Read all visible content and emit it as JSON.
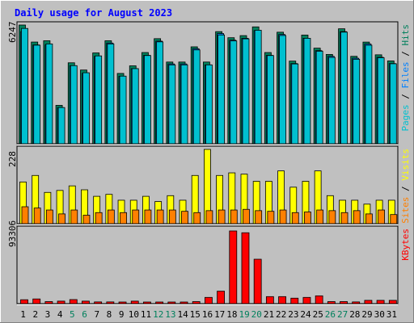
{
  "chart_data": [
    {
      "type": "bar",
      "title": "Daily usage for August 2023",
      "panel": "top",
      "categories": [
        "1",
        "2",
        "3",
        "4",
        "5",
        "6",
        "7",
        "8",
        "9",
        "10",
        "11",
        "12",
        "13",
        "14",
        "15",
        "16",
        "17",
        "18",
        "19",
        "20",
        "21",
        "22",
        "23",
        "24",
        "25",
        "26",
        "27",
        "28",
        "29",
        "30",
        "31"
      ],
      "weekend_days": [
        "5",
        "6",
        "12",
        "13",
        "19",
        "20",
        "26",
        "27"
      ],
      "y_max_label": "6247",
      "ylim": [
        0,
        6247
      ],
      "legend": [
        {
          "text": "Pages",
          "color": "#00c0d0"
        },
        {
          "text": "Files",
          "color": "#0080ff"
        },
        {
          "text": "Hits",
          "color": "#00805c"
        }
      ],
      "series": [
        {
          "name": "Hits",
          "color": "#00805c",
          "values": [
            6247,
            5352,
            5420,
            2020,
            4260,
            3880,
            4780,
            5420,
            3700,
            4100,
            4800,
            5530,
            4300,
            4300,
            5100,
            4300,
            5900,
            5580,
            5690,
            6150,
            4800,
            5870,
            4350,
            5720,
            5030,
            4700,
            6050,
            4600,
            5350,
            4680,
            4360
          ]
        },
        {
          "name": "Files",
          "color": "#0080ff",
          "values": [
            5900,
            5200,
            5200,
            1900,
            4100,
            3700,
            4600,
            5300,
            3550,
            3950,
            4650,
            5400,
            4200,
            4200,
            5000,
            4150,
            5800,
            5450,
            5550,
            5950,
            4650,
            5750,
            4220,
            5550,
            4900,
            4600,
            5900,
            4500,
            5250,
            4550,
            4220
          ]
        },
        {
          "name": "Pages",
          "color": "#00c0d0",
          "values": [
            6247,
            5352,
            5420,
            2020,
            4260,
            3880,
            4780,
            5420,
            3700,
            4100,
            4800,
            5530,
            4300,
            4300,
            5100,
            4300,
            5900,
            5580,
            5690,
            6150,
            4800,
            5870,
            4350,
            5720,
            5030,
            4700,
            6050,
            4600,
            5350,
            4680,
            4360
          ]
        }
      ]
    },
    {
      "type": "bar",
      "panel": "middle",
      "y_max_label": "228",
      "ylim": [
        0,
        228
      ],
      "legend": [
        {
          "text": "Sites",
          "color": "#ff8000"
        },
        {
          "text": "Visits",
          "color": "#ffff00"
        }
      ],
      "series": [
        {
          "name": "Visits",
          "color": "#ffff00",
          "values": [
            128,
            148,
            96,
            102,
            116,
            104,
            84,
            90,
            72,
            72,
            84,
            68,
            86,
            72,
            148,
            228,
            148,
            156,
            152,
            130,
            130,
            162,
            112,
            130,
            162,
            86,
            72,
            72,
            60,
            72,
            72
          ]
        },
        {
          "name": "Sites",
          "color": "#ff8000",
          "values": [
            52,
            48,
            42,
            30,
            42,
            26,
            34,
            42,
            34,
            42,
            42,
            42,
            42,
            38,
            34,
            40,
            42,
            42,
            44,
            40,
            38,
            42,
            34,
            36,
            42,
            40,
            34,
            40,
            30,
            42,
            28
          ]
        }
      ]
    },
    {
      "type": "bar",
      "panel": "bottom",
      "y_max_label": "93306",
      "ylim": [
        0,
        93306
      ],
      "legend": [
        {
          "text": "KBytes",
          "color": "#ff0000"
        }
      ],
      "series": [
        {
          "name": "KBytes",
          "color": "#ff0000",
          "values": [
            5000,
            6000,
            2600,
            3200,
            5200,
            3200,
            2200,
            2200,
            1200,
            3200,
            1200,
            2000,
            2000,
            1200,
            2600,
            8000,
            16000,
            93306,
            91000,
            57000,
            9000,
            9000,
            7000,
            8000,
            10000,
            2600,
            2600,
            2200,
            4200,
            4200,
            4200
          ]
        }
      ]
    }
  ]
}
